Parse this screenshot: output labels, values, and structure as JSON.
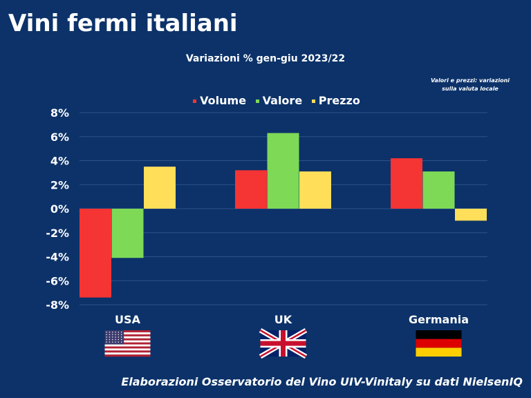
{
  "title": "Vini fermi italiani",
  "note": [
    "Valori e prezzi: variazioni",
    "sulla valuta locale"
  ],
  "footer": "Elaborazioni Osservatorio del Vino UIV-Vinitaly su dati NielsenIQ",
  "colors": {
    "Volume": "#f53434",
    "Valore": "#7ed957",
    "Prezzo": "#ffde59",
    "background": "#0c3269"
  },
  "chart_data": {
    "type": "bar",
    "title": "Variazioni % gen-giu 2023/22",
    "categories": [
      "USA",
      "UK",
      "Germania"
    ],
    "series": [
      {
        "name": "Volume",
        "values": [
          -7.4,
          3.2,
          4.2
        ]
      },
      {
        "name": "Valore",
        "values": [
          -4.1,
          6.3,
          3.1
        ]
      },
      {
        "name": "Prezzo",
        "values": [
          3.5,
          3.1,
          -1.0
        ]
      }
    ],
    "ylim": [
      -8,
      8
    ],
    "yticks": [
      "8%",
      "6%",
      "4%",
      "2%",
      "0%",
      "-2%",
      "-4%",
      "-6%",
      "-8%"
    ],
    "ytick_values": [
      8,
      6,
      4,
      2,
      0,
      -2,
      -4,
      -6,
      -8
    ],
    "grid": true,
    "legend": "top"
  },
  "flags": [
    "us-flag",
    "uk-flag",
    "germany-flag"
  ]
}
